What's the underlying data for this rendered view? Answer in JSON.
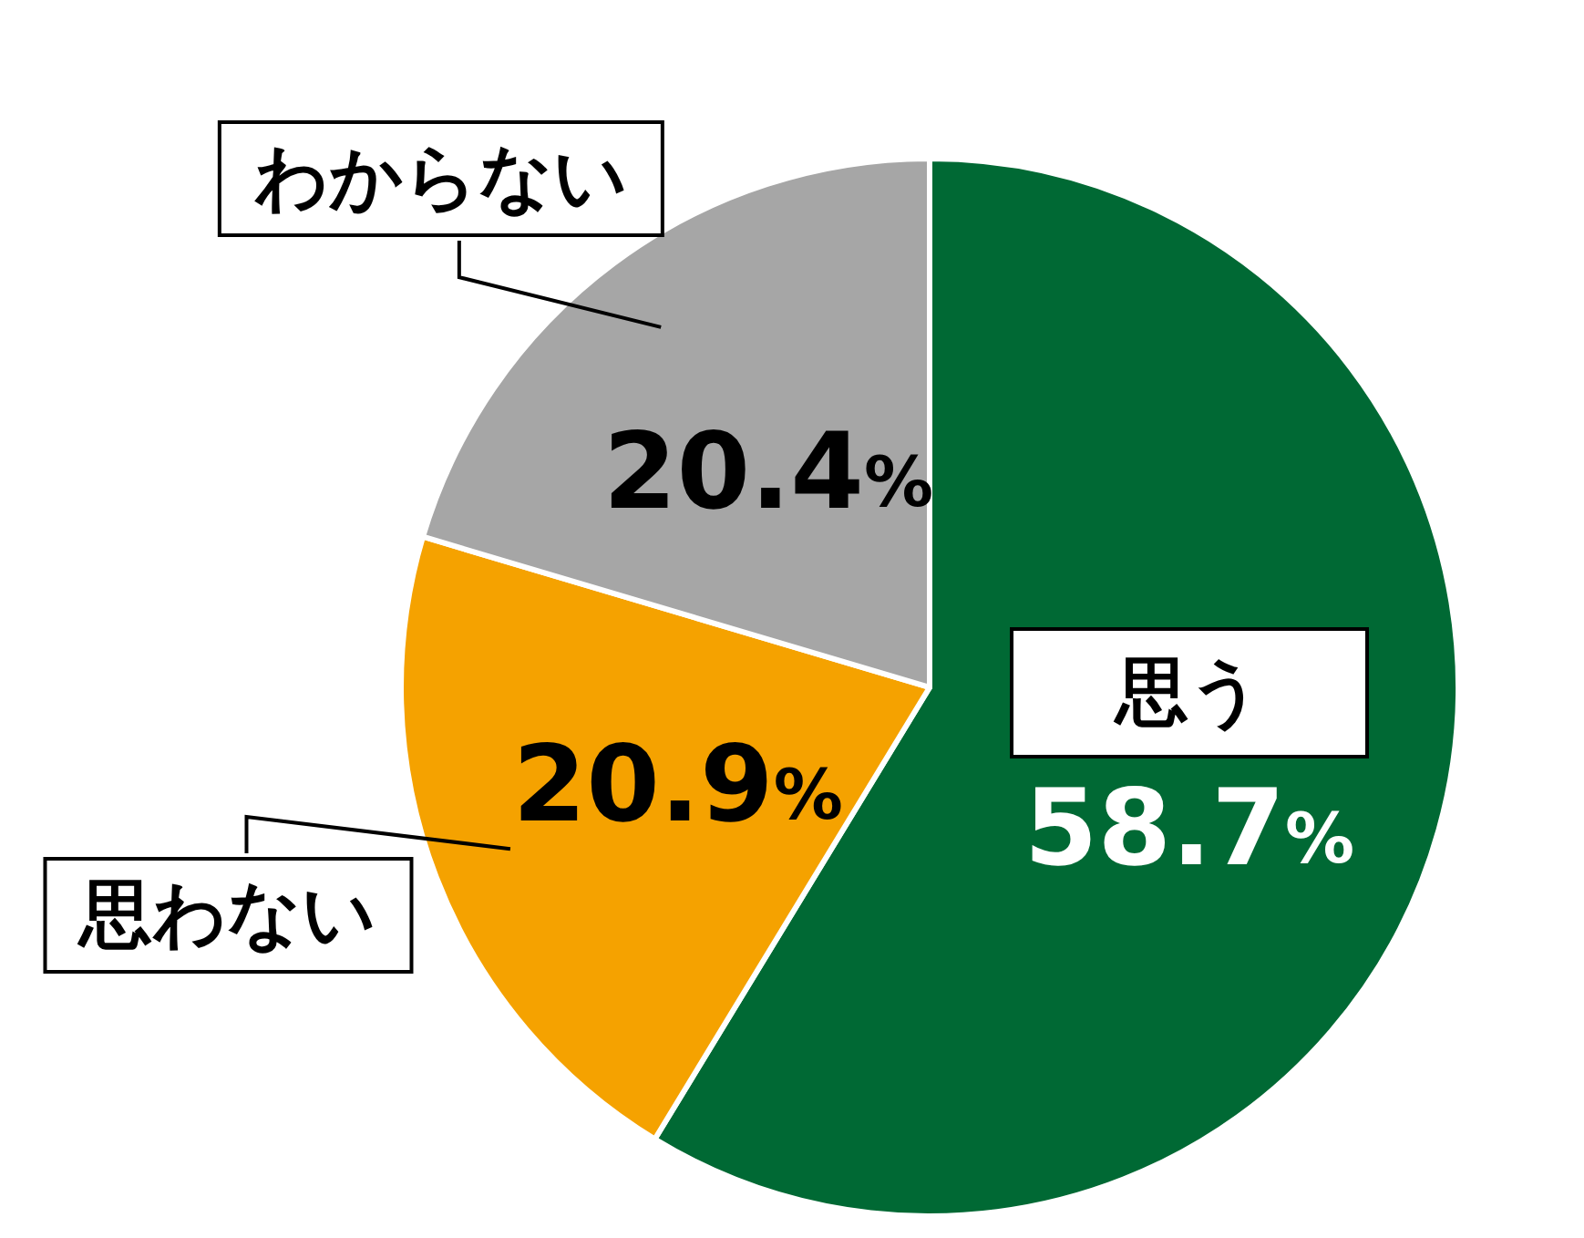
{
  "chart_data": {
    "type": "pie",
    "categories": [
      "思う",
      "思わない",
      "わからない"
    ],
    "values": [
      58.7,
      20.9,
      20.4
    ],
    "colors": [
      "#006934",
      "#f5a200",
      "#a6a6a6"
    ],
    "value_labels": [
      "58.7%",
      "20.9%",
      "20.4%"
    ],
    "legend": false
  }
}
